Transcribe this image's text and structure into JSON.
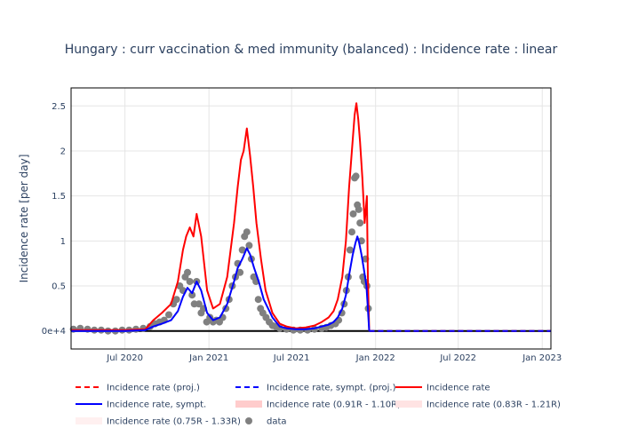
{
  "chart_data": {
    "type": "line",
    "title": "Hungary : curr vaccination & med immunity (balanced) : Incidence rate : linear",
    "ylabel": "Incidence rate [per day]",
    "xlabel": "",
    "x_range": [
      "2020-03-05",
      "2023-01-20"
    ],
    "ylim": [
      -0.2,
      2.7
    ],
    "y_ticks": [
      0,
      0.5,
      1,
      1.5,
      2,
      2.5
    ],
    "y_tick_labels": [
      "0e+4",
      "0.5",
      "1",
      "1.5",
      "2",
      "2.5"
    ],
    "x_ticks": [
      "2020-07-01",
      "2021-01-01",
      "2021-07-01",
      "2022-01-01",
      "2022-07-01",
      "2023-01-01"
    ],
    "x_tick_labels": [
      "Jul 2020",
      "Jan 2021",
      "Jul 2021",
      "Jan 2022",
      "Jul 2022",
      "Jan 2023"
    ],
    "grid": true,
    "legend_position": "bottom",
    "colors": {
      "proj": "#ff0000",
      "sympt": "#0000ff",
      "band1": "#ffcccc",
      "band2": "#ffe3e3",
      "band3": "#fff0f0",
      "data": "#808080",
      "grid": "#e5e5e5",
      "text": "#2a3f5f"
    },
    "legend": [
      {
        "name": "Incidence rate (proj.)",
        "kind": "dash",
        "color": "#ff0000"
      },
      {
        "name": "Incidence rate, sympt. (proj.)",
        "kind": "dash",
        "color": "#0000ff"
      },
      {
        "name": "Incidence rate",
        "kind": "line",
        "color": "#ff0000"
      },
      {
        "name": "Incidence rate, sympt.",
        "kind": "line",
        "color": "#0000ff"
      },
      {
        "name": "Incidence rate (0.91R - 1.10R)",
        "kind": "band",
        "color": "#ffcccc"
      },
      {
        "name": "Incidence rate (0.83R - 1.21R)",
        "kind": "band",
        "color": "#ffe3e3"
      },
      {
        "name": "Incidence rate (0.75R - 1.33R)",
        "kind": "band",
        "color": "#fff0f0"
      },
      {
        "name": "data",
        "kind": "marker",
        "color": "#808080"
      }
    ],
    "series": [
      {
        "name": "Incidence rate",
        "x": [
          "2020-03-05",
          "2020-05-01",
          "2020-07-01",
          "2020-08-15",
          "2020-09-01",
          "2020-09-20",
          "2020-10-10",
          "2020-10-25",
          "2020-11-05",
          "2020-11-12",
          "2020-11-20",
          "2020-11-28",
          "2020-12-05",
          "2020-12-15",
          "2020-12-28",
          "2021-01-10",
          "2021-01-25",
          "2021-02-10",
          "2021-02-25",
          "2021-03-05",
          "2021-03-12",
          "2021-03-18",
          "2021-03-25",
          "2021-04-01",
          "2021-04-08",
          "2021-04-15",
          "2021-04-25",
          "2021-05-05",
          "2021-05-20",
          "2021-06-05",
          "2021-06-20",
          "2021-07-10",
          "2021-08-01",
          "2021-08-20",
          "2021-09-05",
          "2021-09-20",
          "2021-10-01",
          "2021-10-10",
          "2021-10-20",
          "2021-10-28",
          "2021-11-04",
          "2021-11-10",
          "2021-11-16",
          "2021-11-20",
          "2021-11-24",
          "2021-11-28",
          "2021-12-03",
          "2021-12-08",
          "2021-12-13",
          "2021-12-15",
          "2021-12-18"
        ],
        "y": [
          0.01,
          0.01,
          0.01,
          0.02,
          0.12,
          0.2,
          0.3,
          0.55,
          0.9,
          1.05,
          1.15,
          1.05,
          1.3,
          1.05,
          0.45,
          0.25,
          0.3,
          0.6,
          1.2,
          1.6,
          1.9,
          2.0,
          2.25,
          1.95,
          1.6,
          1.2,
          0.8,
          0.45,
          0.2,
          0.08,
          0.05,
          0.03,
          0.04,
          0.06,
          0.1,
          0.15,
          0.22,
          0.35,
          0.6,
          1.0,
          1.6,
          2.0,
          2.4,
          2.53,
          2.35,
          2.1,
          1.7,
          1.2,
          1.5,
          0.6,
          0.0
        ]
      },
      {
        "name": "Incidence rate, sympt.",
        "x": [
          "2020-03-05",
          "2020-05-01",
          "2020-07-01",
          "2020-08-15",
          "2020-09-01",
          "2020-09-20",
          "2020-10-10",
          "2020-10-25",
          "2020-11-05",
          "2020-11-15",
          "2020-11-25",
          "2020-12-05",
          "2020-12-15",
          "2020-12-28",
          "2021-01-10",
          "2021-01-25",
          "2021-02-10",
          "2021-02-25",
          "2021-03-05",
          "2021-03-15",
          "2021-03-25",
          "2021-04-01",
          "2021-04-10",
          "2021-04-20",
          "2021-05-01",
          "2021-05-20",
          "2021-06-05",
          "2021-06-20",
          "2021-07-10",
          "2021-08-01",
          "2021-08-20",
          "2021-09-05",
          "2021-09-20",
          "2021-10-01",
          "2021-10-10",
          "2021-10-20",
          "2021-10-28",
          "2021-11-05",
          "2021-11-12",
          "2021-11-18",
          "2021-11-22",
          "2021-11-26",
          "2021-12-01",
          "2021-12-06",
          "2021-12-12",
          "2021-12-15",
          "2021-12-18"
        ],
        "y": [
          0.0,
          0.0,
          0.0,
          0.01,
          0.05,
          0.08,
          0.12,
          0.22,
          0.38,
          0.48,
          0.42,
          0.55,
          0.45,
          0.2,
          0.12,
          0.15,
          0.3,
          0.55,
          0.7,
          0.8,
          0.92,
          0.85,
          0.7,
          0.55,
          0.35,
          0.15,
          0.05,
          0.03,
          0.02,
          0.02,
          0.03,
          0.05,
          0.07,
          0.1,
          0.15,
          0.25,
          0.4,
          0.65,
          0.85,
          0.98,
          1.05,
          0.98,
          0.85,
          0.7,
          0.5,
          0.25,
          0.0
        ]
      },
      {
        "name": "Incidence rate (proj.)",
        "x": [
          "2021-12-18",
          "2023-01-20"
        ],
        "y": [
          0.0,
          0.0
        ]
      },
      {
        "name": "Incidence rate, sympt. (proj.)",
        "x": [
          "2021-12-18",
          "2023-01-20"
        ],
        "y": [
          0.0,
          0.0
        ]
      },
      {
        "name": "data",
        "x": [
          "2020-03-10",
          "2020-03-25",
          "2020-04-10",
          "2020-04-25",
          "2020-05-10",
          "2020-05-25",
          "2020-06-10",
          "2020-06-25",
          "2020-07-10",
          "2020-07-25",
          "2020-08-10",
          "2020-08-25",
          "2020-09-05",
          "2020-09-15",
          "2020-09-25",
          "2020-10-05",
          "2020-10-15",
          "2020-10-22",
          "2020-10-29",
          "2020-11-05",
          "2020-11-10",
          "2020-11-15",
          "2020-11-20",
          "2020-11-25",
          "2020-11-30",
          "2020-12-05",
          "2020-12-10",
          "2020-12-15",
          "2020-12-20",
          "2020-12-27",
          "2021-01-03",
          "2021-01-10",
          "2021-01-17",
          "2021-01-24",
          "2021-01-31",
          "2021-02-07",
          "2021-02-14",
          "2021-02-21",
          "2021-02-28",
          "2021-03-05",
          "2021-03-10",
          "2021-03-15",
          "2021-03-20",
          "2021-03-25",
          "2021-03-30",
          "2021-04-04",
          "2021-04-09",
          "2021-04-14",
          "2021-04-19",
          "2021-04-24",
          "2021-04-29",
          "2021-05-06",
          "2021-05-13",
          "2021-05-20",
          "2021-05-27",
          "2021-06-05",
          "2021-06-20",
          "2021-07-05",
          "2021-07-20",
          "2021-08-05",
          "2021-08-20",
          "2021-09-05",
          "2021-09-15",
          "2021-09-25",
          "2021-10-05",
          "2021-10-12",
          "2021-10-19",
          "2021-10-24",
          "2021-10-29",
          "2021-11-02",
          "2021-11-06",
          "2021-11-10",
          "2021-11-13",
          "2021-11-16",
          "2021-11-19",
          "2021-11-22",
          "2021-11-25",
          "2021-11-28",
          "2021-12-01",
          "2021-12-04",
          "2021-12-07",
          "2021-12-10",
          "2021-12-13",
          "2021-12-16"
        ],
        "y": [
          0.02,
          0.03,
          0.02,
          0.01,
          0.01,
          0.0,
          0.0,
          0.01,
          0.01,
          0.02,
          0.03,
          0.05,
          0.08,
          0.1,
          0.12,
          0.18,
          0.3,
          0.35,
          0.5,
          0.45,
          0.6,
          0.65,
          0.55,
          0.4,
          0.3,
          0.55,
          0.3,
          0.2,
          0.25,
          0.1,
          0.15,
          0.1,
          0.12,
          0.1,
          0.15,
          0.25,
          0.35,
          0.5,
          0.6,
          0.75,
          0.65,
          0.9,
          1.05,
          1.1,
          0.95,
          0.8,
          0.6,
          0.55,
          0.35,
          0.25,
          0.2,
          0.15,
          0.1,
          0.06,
          0.05,
          0.03,
          0.02,
          0.01,
          0.01,
          0.01,
          0.02,
          0.03,
          0.04,
          0.06,
          0.08,
          0.12,
          0.2,
          0.3,
          0.45,
          0.6,
          0.9,
          1.1,
          1.3,
          1.7,
          1.72,
          1.4,
          1.35,
          1.2,
          1.0,
          0.6,
          0.55,
          0.8,
          0.5,
          0.25
        ]
      }
    ]
  }
}
